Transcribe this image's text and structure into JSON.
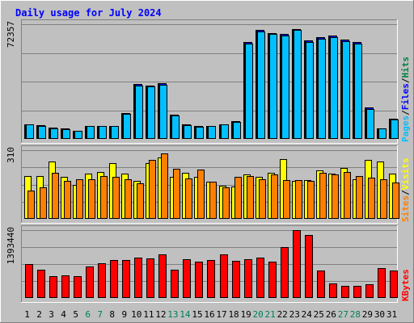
{
  "chart_data": [
    {
      "type": "bar",
      "title": "Daily usage for July 2024",
      "ylabel_parts": [
        {
          "text": "Pages",
          "color": "#00c0ff"
        },
        {
          "text": "Files",
          "color": "#0000ff"
        },
        {
          "text": "Hits",
          "color": "#008040"
        }
      ],
      "ymax_label": "72357",
      "ylim": [
        0,
        72357
      ],
      "categories": [
        "1",
        "2",
        "3",
        "4",
        "5",
        "6",
        "7",
        "8",
        "9",
        "10",
        "11",
        "12",
        "13",
        "14",
        "15",
        "16",
        "17",
        "18",
        "19",
        "20",
        "21",
        "22",
        "23",
        "24",
        "25",
        "26",
        "27",
        "28",
        "29",
        "30",
        "31"
      ],
      "weekend_days": [
        "6",
        "7",
        "13",
        "14",
        "20",
        "21",
        "27",
        "28"
      ],
      "grid": true,
      "series": [
        {
          "name": "Hits",
          "color": "#008040",
          "values": [
            9200,
            8500,
            7000,
            6500,
            5100,
            8200,
            8300,
            8400,
            16300,
            34800,
            33800,
            35000,
            15200,
            9000,
            8100,
            8200,
            9400,
            11100,
            61100,
            68600,
            66800,
            66000,
            69500,
            62000,
            64000,
            65100,
            62500,
            61000,
            19700,
            6800,
            12700
          ]
        },
        {
          "name": "Files",
          "color": "#0000ff",
          "values": [
            9200,
            8500,
            7000,
            6500,
            5100,
            8200,
            8300,
            8400,
            16300,
            34800,
            33800,
            35000,
            15200,
            9000,
            8100,
            8200,
            9400,
            11100,
            61100,
            68600,
            66800,
            66000,
            69500,
            62000,
            64000,
            65100,
            62500,
            61000,
            19700,
            6800,
            12700
          ]
        },
        {
          "name": "Pages",
          "color": "#00c0ff",
          "values": [
            9000,
            8200,
            6800,
            6300,
            4900,
            8000,
            8100,
            8200,
            15800,
            33600,
            33000,
            34200,
            14800,
            8700,
            7800,
            7900,
            9100,
            10800,
            60100,
            68000,
            66000,
            65200,
            68800,
            61000,
            63100,
            64200,
            61700,
            60300,
            19000,
            6500,
            12300
          ]
        }
      ]
    },
    {
      "type": "bar",
      "ylabel_parts": [
        {
          "text": "Sites",
          "color": "#ff8000"
        },
        {
          "text": "Visits",
          "color": "#ffff00"
        }
      ],
      "ymax_label": "310",
      "ylim": [
        0,
        310
      ],
      "categories": [
        "1",
        "2",
        "3",
        "4",
        "5",
        "6",
        "7",
        "8",
        "9",
        "10",
        "11",
        "12",
        "13",
        "14",
        "15",
        "16",
        "17",
        "18",
        "19",
        "20",
        "21",
        "22",
        "23",
        "24",
        "25",
        "26",
        "27",
        "28",
        "29",
        "30",
        "31"
      ],
      "grid": true,
      "series": [
        {
          "name": "Visits",
          "color": "#ffff00",
          "values": [
            195,
            195,
            260,
            188,
            152,
            205,
            212,
            250,
            205,
            170,
            250,
            278,
            190,
            208,
            190,
            168,
            148,
            147,
            202,
            188,
            208,
            270,
            170,
            175,
            220,
            205,
            230,
            180,
            265,
            258,
            205
          ]
        },
        {
          "name": "Sites",
          "color": "#ff8000",
          "values": [
            127,
            142,
            208,
            172,
            180,
            180,
            195,
            188,
            177,
            160,
            268,
            295,
            225,
            182,
            222,
            167,
            142,
            190,
            194,
            178,
            200,
            175,
            176,
            170,
            208,
            201,
            210,
            192,
            186,
            178,
            165
          ]
        }
      ]
    },
    {
      "type": "bar",
      "ylabel_parts": [
        {
          "text": "KBytes",
          "color": "#ff0000"
        }
      ],
      "ymax_label": "1393440",
      "ylim": [
        0,
        1393440
      ],
      "categories": [
        "1",
        "2",
        "3",
        "4",
        "5",
        "6",
        "7",
        "8",
        "9",
        "10",
        "11",
        "12",
        "13",
        "14",
        "15",
        "16",
        "17",
        "18",
        "19",
        "20",
        "21",
        "22",
        "23",
        "24",
        "25",
        "26",
        "27",
        "28",
        "29",
        "30",
        "31"
      ],
      "grid": true,
      "series": [
        {
          "name": "KBytes",
          "color": "#ff0000",
          "values": [
            700000,
            580000,
            445000,
            460000,
            440000,
            650000,
            720000,
            775000,
            775000,
            825000,
            805000,
            890000,
            580000,
            790000,
            745000,
            775000,
            900000,
            770000,
            790000,
            835000,
            745000,
            1040000,
            1393440,
            1290000,
            560000,
            295000,
            255000,
            245000,
            290000,
            620000,
            560000
          ]
        }
      ]
    }
  ]
}
